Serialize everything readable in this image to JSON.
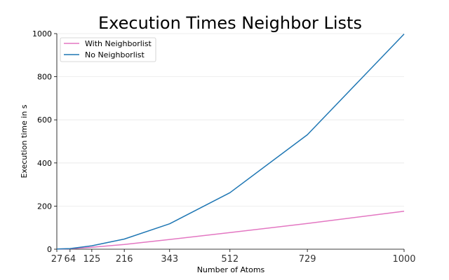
{
  "chart_data": {
    "type": "line",
    "title": "Execution Times Neighbor Lists",
    "xlabel": "Number of Atoms",
    "ylabel": "Execution time in s",
    "x": [
      27,
      64,
      125,
      216,
      343,
      512,
      729,
      1000
    ],
    "xticks": [
      "27",
      "64",
      "125",
      "216",
      "343",
      "512",
      "729",
      "1000"
    ],
    "yticks": [
      "0",
      "200",
      "400",
      "600",
      "800",
      "1000"
    ],
    "xlim": [
      27,
      1000
    ],
    "ylim": [
      0,
      1000
    ],
    "grid": "y",
    "legend": "upper-left",
    "series": [
      {
        "name": "With Neighborlist",
        "color": "#e377c2",
        "values": [
          0.5,
          2,
          9,
          22,
          45,
          77,
          119,
          176
        ]
      },
      {
        "name": "No Neighborlist",
        "color": "#1f77b4",
        "values": [
          0.5,
          3,
          16,
          47,
          118,
          262,
          531,
          998
        ]
      }
    ]
  }
}
